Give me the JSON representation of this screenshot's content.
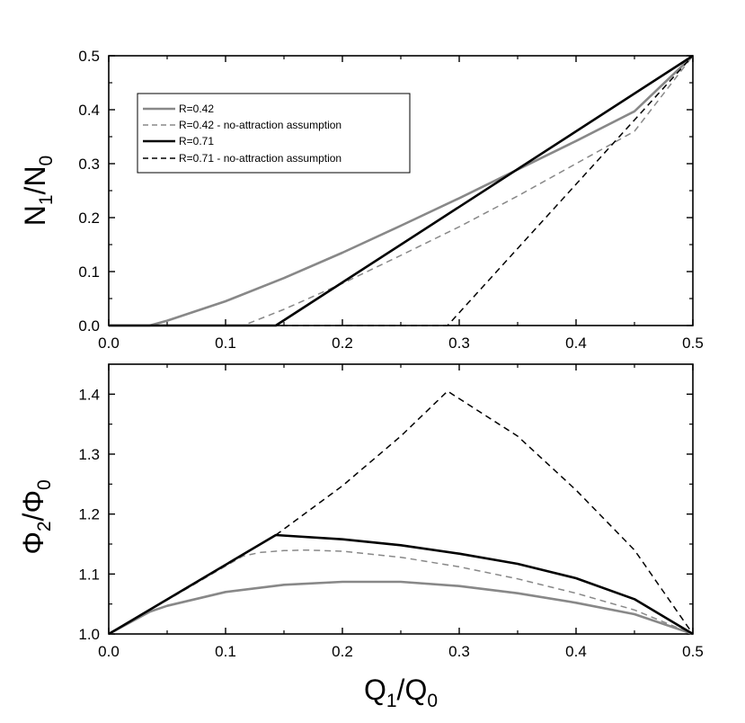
{
  "chart_data": [
    {
      "type": "line",
      "title": "",
      "xlabel": {
        "main": "Q",
        "sub1": "1",
        "slash": "/Q",
        "sub2": "0"
      },
      "ylabel": {
        "main": "N",
        "sub1": "1",
        "slash": "/N",
        "sub2": "0"
      },
      "xlim": [
        0,
        0.5
      ],
      "ylim": [
        0,
        0.5
      ],
      "xticks": [
        "0.0",
        "0.1",
        "0.2",
        "0.3",
        "0.4",
        "0.5"
      ],
      "yticks": [
        "0.0",
        "0.1",
        "0.2",
        "0.3",
        "0.4",
        "0.5"
      ],
      "grid": false,
      "legend_position": "top-left",
      "series": [
        {
          "name": "R=0.42",
          "color": "#888888",
          "dash": "solid",
          "x": [
            0,
            0.035,
            0.05,
            0.1,
            0.15,
            0.2,
            0.25,
            0.3,
            0.35,
            0.4,
            0.45,
            0.5
          ],
          "y": [
            0,
            0,
            0.009,
            0.045,
            0.088,
            0.135,
            0.185,
            0.236,
            0.289,
            0.342,
            0.397,
            0.5
          ]
        },
        {
          "name": "R=0.42 - no-attraction assumption",
          "color": "#888888",
          "dash": "dashed",
          "x": [
            0,
            0.115,
            0.15,
            0.2,
            0.25,
            0.3,
            0.35,
            0.4,
            0.45,
            0.5
          ],
          "y": [
            0,
            0,
            0.03,
            0.078,
            0.13,
            0.183,
            0.24,
            0.3,
            0.36,
            0.5
          ]
        },
        {
          "name": "R=0.71",
          "color": "#000000",
          "dash": "solid",
          "x": [
            0,
            0.143,
            0.5
          ],
          "y": [
            0,
            0,
            0.5
          ]
        },
        {
          "name": "R=0.71 - no-attraction assumption",
          "color": "#000000",
          "dash": "dashed",
          "x": [
            0,
            0.29,
            0.5
          ],
          "y": [
            0,
            0,
            0.5
          ]
        }
      ]
    },
    {
      "type": "line",
      "title": "",
      "xlabel": {
        "main": "Q",
        "sub1": "1",
        "slash": "/Q",
        "sub2": "0"
      },
      "ylabel": {
        "main": "Φ",
        "sub1": "2",
        "slash": "/Φ",
        "sub2": "0"
      },
      "xlim": [
        0,
        0.5
      ],
      "ylim": [
        1.0,
        1.45
      ],
      "xticks": [
        "0.0",
        "0.1",
        "0.2",
        "0.3",
        "0.4",
        "0.5"
      ],
      "yticks": [
        "1.0",
        "1.1",
        "1.2",
        "1.3",
        "1.4"
      ],
      "grid": false,
      "series": [
        {
          "name": "R=0.42",
          "color": "#888888",
          "dash": "solid",
          "x": [
            0,
            0.035,
            0.05,
            0.1,
            0.15,
            0.2,
            0.25,
            0.3,
            0.35,
            0.4,
            0.45,
            0.5
          ],
          "y": [
            1.0,
            1.037,
            1.047,
            1.07,
            1.082,
            1.087,
            1.087,
            1.08,
            1.068,
            1.052,
            1.033,
            1.0
          ]
        },
        {
          "name": "R=0.42 - no-attraction assumption",
          "color": "#888888",
          "dash": "dashed",
          "x": [
            0,
            0.115,
            0.13,
            0.15,
            0.17,
            0.2,
            0.25,
            0.3,
            0.35,
            0.4,
            0.45,
            0.5
          ],
          "y": [
            1.0,
            1.13,
            1.136,
            1.139,
            1.14,
            1.138,
            1.128,
            1.112,
            1.092,
            1.068,
            1.04,
            1.0
          ]
        },
        {
          "name": "R=0.71",
          "color": "#000000",
          "dash": "solid",
          "x": [
            0,
            0.143,
            0.2,
            0.25,
            0.3,
            0.35,
            0.4,
            0.45,
            0.5
          ],
          "y": [
            1.0,
            1.165,
            1.158,
            1.148,
            1.134,
            1.117,
            1.093,
            1.058,
            1.0
          ]
        },
        {
          "name": "R=0.71 - no-attraction assumption",
          "color": "#000000",
          "dash": "dashed",
          "x": [
            0,
            0.143,
            0.2,
            0.25,
            0.29,
            0.35,
            0.4,
            0.45,
            0.5
          ],
          "y": [
            1.0,
            1.165,
            1.247,
            1.33,
            1.405,
            1.33,
            1.24,
            1.14,
            1.0
          ]
        }
      ]
    }
  ]
}
